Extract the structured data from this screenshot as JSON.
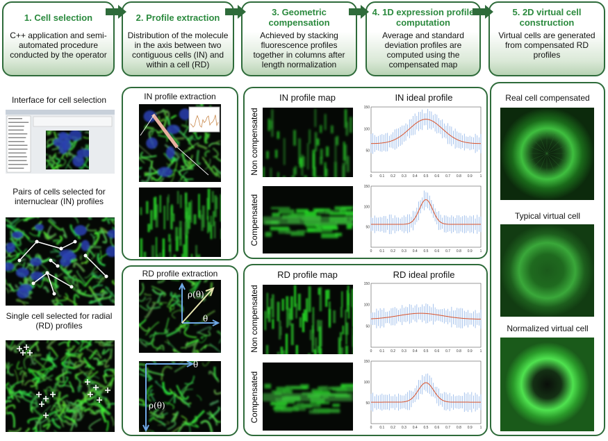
{
  "steps": [
    {
      "title": "1. Cell selection",
      "text": "C++ application and semi-automated procedure conducted by the operator"
    },
    {
      "title": "2. Profile extraction",
      "text": "Distribution of the molecule in the axis between two contiguous cells (IN) and within a cell (RD)"
    },
    {
      "title": "3. Geometric compensation",
      "text": "Achieved by stacking fluorescence profiles together in columns after length normalization"
    },
    {
      "title": "4. 1D expression profile computation",
      "text": "Average and standard deviation profiles are computed using the compensated map"
    },
    {
      "title": "5. 2D virtual cell construction",
      "text": "Virtual cells are generated  from compensated RD profiles"
    }
  ],
  "cell_selection": {
    "interface_label": "Interface for cell selection",
    "pairs_label": "Pairs of cells selected for internuclear (IN) profiles",
    "single_label": "Single cell selected for radial (RD) profiles"
  },
  "in_extraction": {
    "title": "IN profile extraction"
  },
  "rd_extraction": {
    "title": "RD profile extraction",
    "rho_label": "ρ(θ)",
    "theta_label": "θ"
  },
  "in_profiles": {
    "map_title": "IN profile map",
    "profile_title": "IN ideal profile",
    "rows": [
      "Non compensated",
      "Compensated"
    ]
  },
  "rd_profiles": {
    "map_title": "RD profile map",
    "profile_title": "RD ideal profile",
    "rows": [
      "Non compensated",
      "Compensated"
    ]
  },
  "virtual_cells": {
    "labels": [
      "Real cell compensated",
      "Typical virtual cell",
      "Normalized virtual cell"
    ]
  },
  "plot_axis": {
    "xticks": [
      "0",
      "0.1",
      "0.2",
      "0.3",
      "0.4",
      "0.5",
      "0.6",
      "0.7",
      "0.8",
      "0.9",
      "1"
    ],
    "yticks": [
      "150",
      "100",
      "50"
    ]
  }
}
